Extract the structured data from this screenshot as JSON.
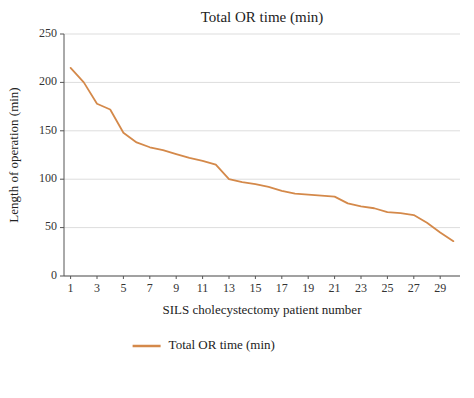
{
  "chart_data": {
    "type": "line",
    "title": "Total OR time (min)",
    "x_label": "SILS cholecystectomy patient number",
    "y_label": "Length of operation (min)",
    "x": [
      1,
      2,
      3,
      4,
      5,
      6,
      7,
      8,
      9,
      10,
      11,
      12,
      13,
      14,
      15,
      16,
      17,
      18,
      19,
      20,
      21,
      22,
      23,
      24,
      25,
      26,
      27,
      28,
      29,
      30
    ],
    "series": [
      {
        "name": "Total OR time (min)",
        "color": "#D4894A",
        "values": [
          215,
          200,
          178,
          172,
          148,
          138,
          133,
          130,
          126,
          122,
          119,
          115,
          100,
          97,
          95,
          92,
          88,
          85,
          84,
          83,
          82,
          75,
          72,
          70,
          66,
          65,
          63,
          55,
          45,
          36
        ]
      }
    ],
    "xlim": [
      0.5,
      30.5
    ],
    "ylim": [
      0,
      250
    ],
    "xticks": [
      1,
      3,
      5,
      7,
      9,
      11,
      13,
      15,
      17,
      19,
      21,
      23,
      25,
      27,
      29
    ],
    "yticks": [
      0,
      50,
      100,
      150,
      200,
      250
    ],
    "grid": "y",
    "legend": "bottom"
  }
}
